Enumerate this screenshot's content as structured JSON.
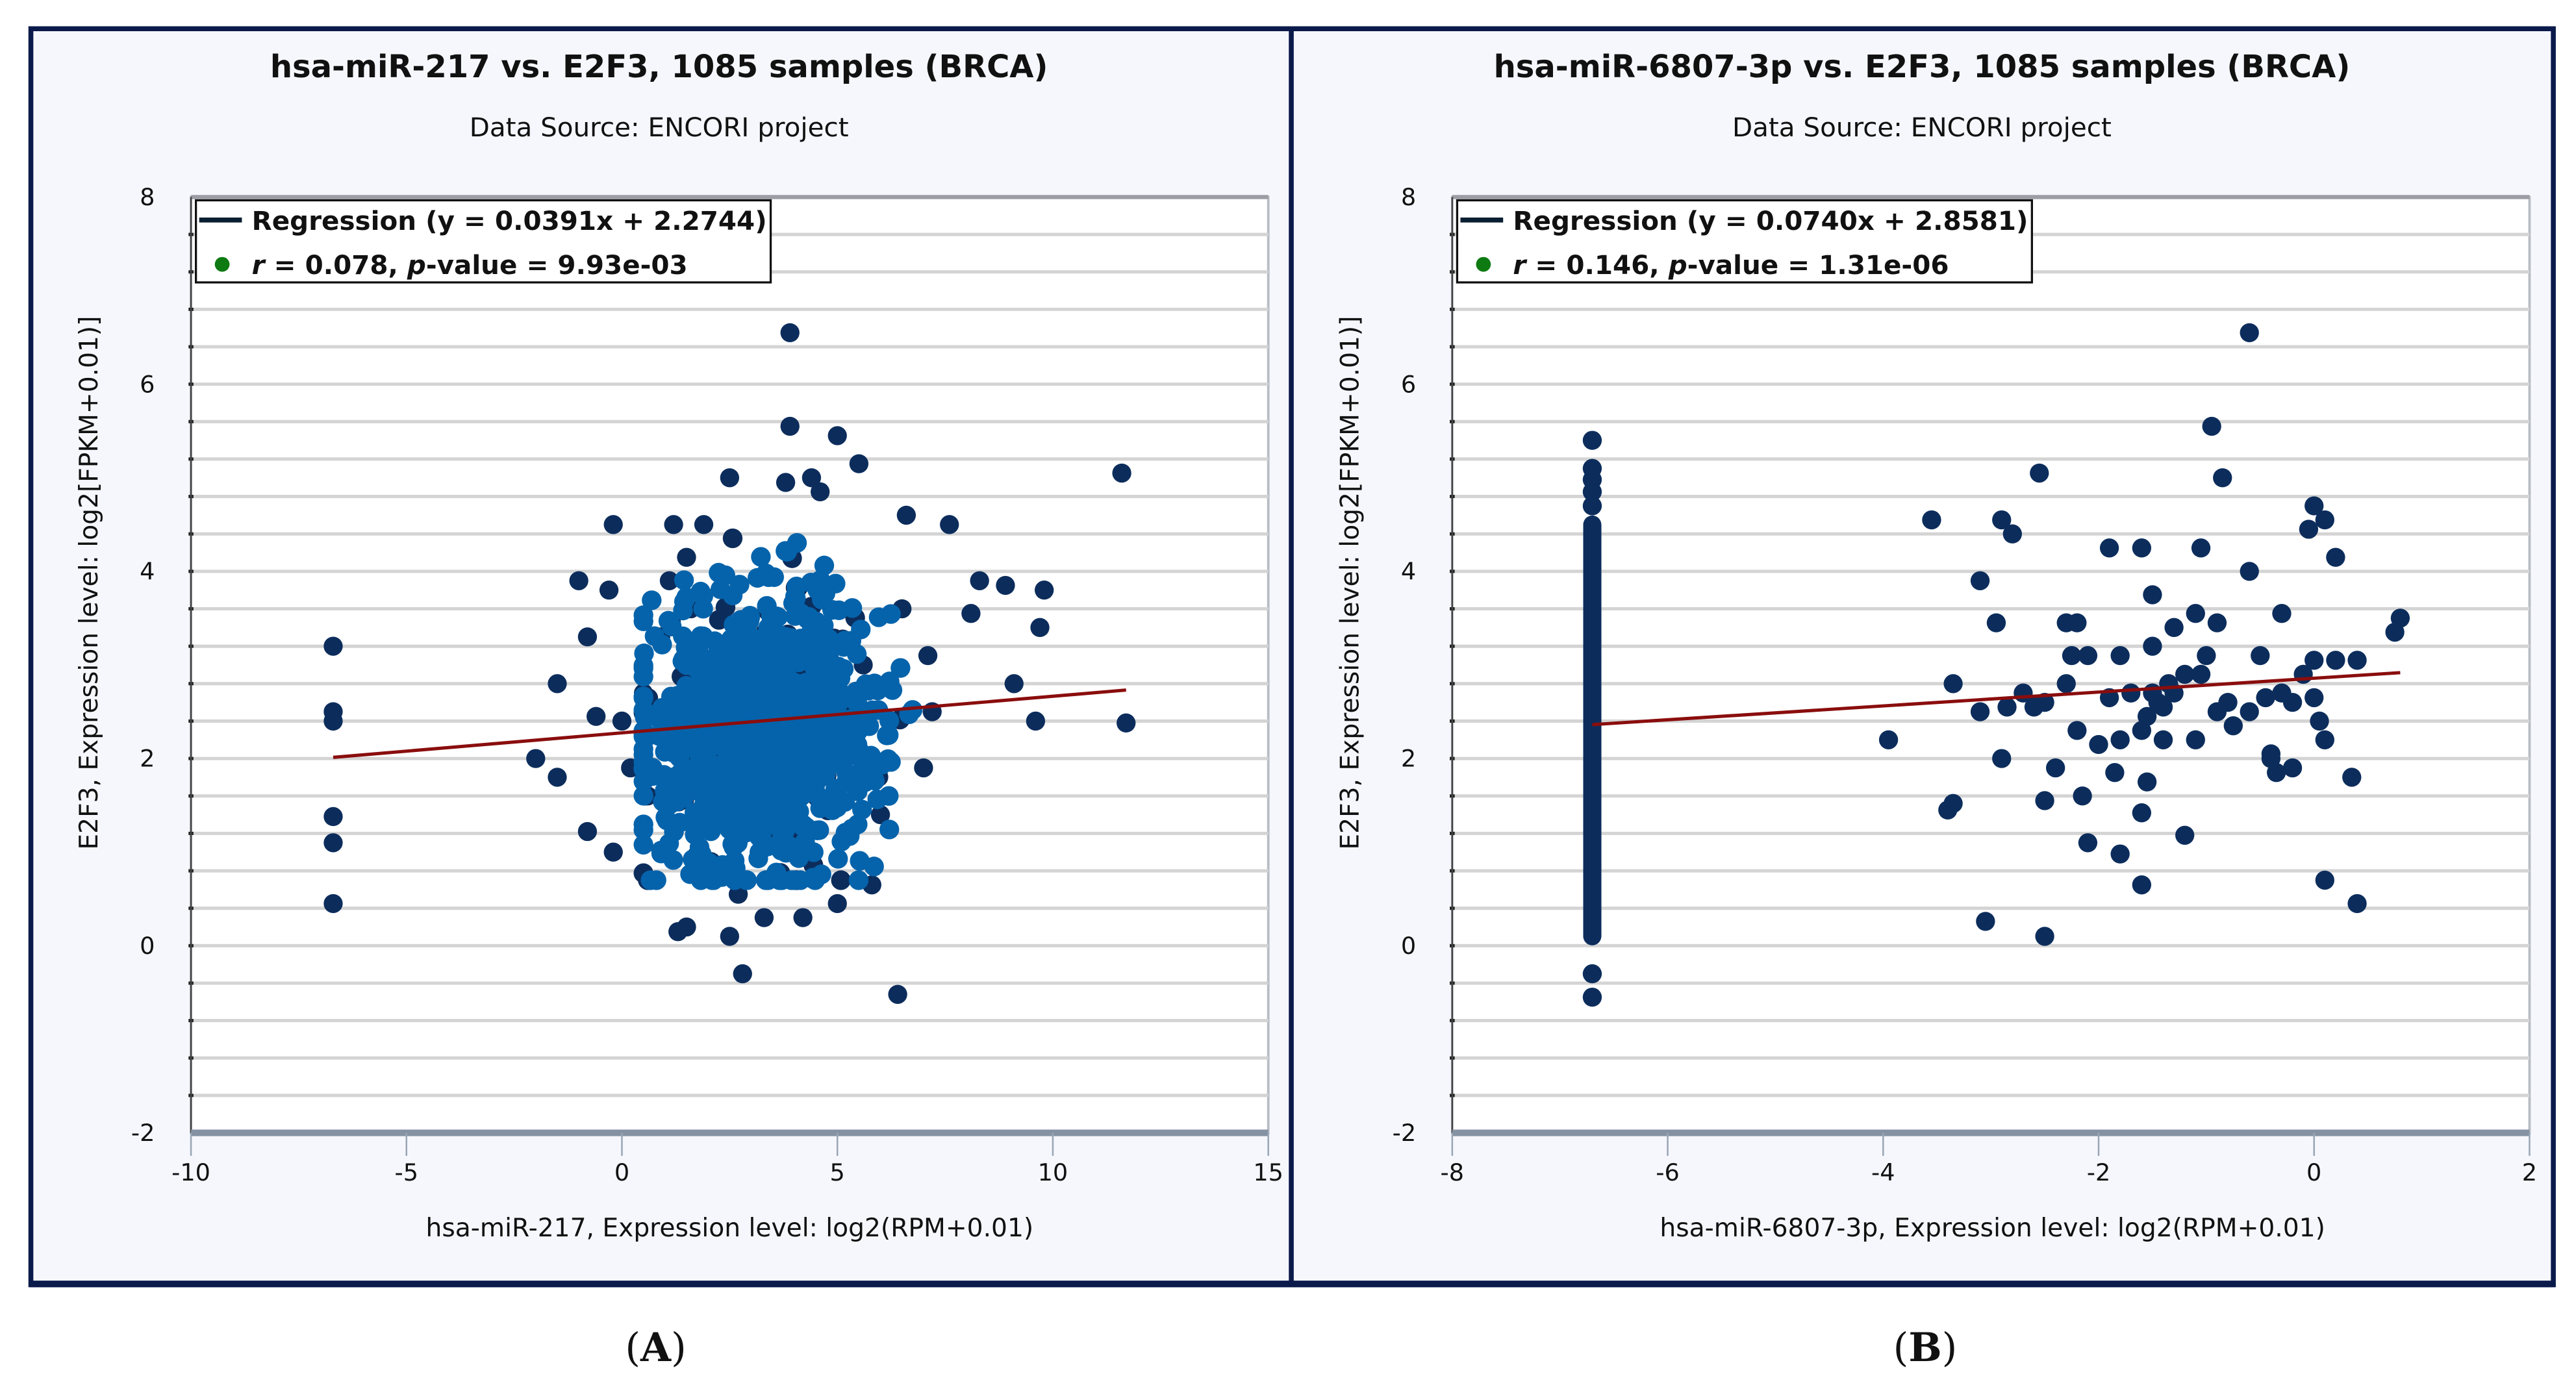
{
  "panel_labels": [
    {
      "open": "(",
      "letter": "A",
      "close": ")"
    },
    {
      "open": "(",
      "letter": "B",
      "close": ")"
    }
  ],
  "colors": {
    "frame": "#0a1a4a",
    "panel_bg": "#f6f7fd",
    "grid": "#d4d4d4",
    "point": "#0c2d5c",
    "cluster_point": "#0563ab",
    "regression": "#8a0d0d",
    "legend_line": "#0b1f33",
    "legend_dot": "#0e7a12"
  },
  "chart_data": [
    {
      "type": "scatter",
      "title": "hsa-miR-217 vs. E2F3, 1085 samples (BRCA)",
      "subtitle": "Data Source: ENCORI project",
      "xlabel": "hsa-miR-217, Expression level: log2(RPM+0.01)",
      "ylabel": "E2F3, Expression level: log2[FPKM+0.01)]",
      "xlim": [
        -10,
        15
      ],
      "ylim": [
        -2,
        8
      ],
      "xticks": [
        -10,
        -5,
        0,
        5,
        10,
        15
      ],
      "yticks": [
        -2,
        0,
        2,
        4,
        6,
        8
      ],
      "grid": true,
      "grid_step": 0.4,
      "legend_position": "top-left",
      "legend": {
        "regression": "Regression (y = 0.0391x + 2.2744)",
        "stats": "r = 0.078, p-value = 9.93e-03"
      },
      "regression": {
        "slope": 0.0391,
        "intercept": 2.2744,
        "x_range": [
          -6.7,
          11.7
        ]
      },
      "n_samples": 1085,
      "dense_cluster": {
        "center": [
          3.3,
          2.3
        ],
        "sd": [
          1.35,
          0.75
        ],
        "n": 1000
      },
      "points": [
        [
          -6.7,
          3.2
        ],
        [
          -6.7,
          2.5
        ],
        [
          -6.7,
          2.4
        ],
        [
          -6.7,
          1.38
        ],
        [
          -6.7,
          1.1
        ],
        [
          -6.7,
          0.45
        ],
        [
          3.9,
          6.55
        ],
        [
          3.9,
          5.55
        ],
        [
          5.0,
          5.45
        ],
        [
          11.6,
          5.05
        ],
        [
          2.5,
          5.0
        ],
        [
          3.8,
          4.95
        ],
        [
          5.5,
          5.15
        ],
        [
          4.4,
          5.0
        ],
        [
          4.6,
          4.85
        ],
        [
          -0.2,
          4.5
        ],
        [
          1.2,
          4.5
        ],
        [
          1.9,
          4.5
        ],
        [
          6.6,
          4.6
        ],
        [
          7.6,
          4.5
        ],
        [
          8.3,
          3.9
        ],
        [
          8.9,
          3.85
        ],
        [
          9.8,
          3.8
        ],
        [
          9.7,
          3.4
        ],
        [
          8.1,
          3.55
        ],
        [
          -1.0,
          3.9
        ],
        [
          -0.3,
          3.8
        ],
        [
          1.5,
          4.15
        ],
        [
          1.1,
          3.9
        ],
        [
          -0.8,
          3.3
        ],
        [
          9.1,
          2.8
        ],
        [
          9.6,
          2.4
        ],
        [
          11.7,
          2.38
        ],
        [
          -1.5,
          2.8
        ],
        [
          -2.0,
          2.0
        ],
        [
          -1.5,
          1.8
        ],
        [
          -0.8,
          1.22
        ],
        [
          -0.2,
          1.0
        ],
        [
          0.0,
          2.4
        ],
        [
          -0.6,
          2.45
        ],
        [
          2.5,
          0.1
        ],
        [
          1.3,
          0.15
        ],
        [
          1.5,
          0.2
        ],
        [
          2.8,
          -0.3
        ],
        [
          6.4,
          -0.52
        ],
        [
          5.0,
          0.45
        ],
        [
          5.8,
          0.65
        ],
        [
          3.3,
          0.3
        ],
        [
          4.2,
          0.3
        ],
        [
          2.7,
          0.55
        ],
        [
          7.0,
          1.9
        ],
        [
          7.2,
          2.5
        ],
        [
          7.1,
          3.1
        ],
        [
          6.5,
          3.6
        ],
        [
          6.0,
          1.4
        ],
        [
          0.6,
          1.6
        ],
        [
          0.2,
          1.9
        ],
        [
          0.5,
          2.7
        ],
        [
          0.9,
          3.3
        ],
        [
          1.6,
          3.6
        ],
        [
          5.6,
          3.0
        ]
      ]
    },
    {
      "type": "scatter",
      "title": "hsa-miR-6807-3p vs. E2F3, 1085 samples (BRCA)",
      "subtitle": "Data Source: ENCORI project",
      "xlabel": "hsa-miR-6807-3p, Expression level: log2(RPM+0.01)",
      "ylabel": "E2F3, Expression level: log2[FPKM+0.01)]",
      "xlim": [
        -8,
        2
      ],
      "ylim": [
        -2,
        8
      ],
      "xticks": [
        -8,
        -6,
        -4,
        -2,
        0,
        2
      ],
      "yticks": [
        -2,
        0,
        2,
        4,
        6,
        8
      ],
      "grid": true,
      "grid_step": 0.4,
      "legend_position": "top-left",
      "legend": {
        "regression": "Regression (y = 0.0740x + 2.8581)",
        "stats": "r = 0.146, p-value = 1.31e-06"
      },
      "regression": {
        "slope": 0.074,
        "intercept": 2.8581,
        "x_range": [
          -6.7,
          0.8
        ]
      },
      "n_samples": 1085,
      "vertical_column": {
        "x": -6.7,
        "y_range": [
          0.1,
          4.5
        ],
        "n": 900
      },
      "points": [
        [
          -6.7,
          5.4
        ],
        [
          -6.7,
          5.1
        ],
        [
          -6.7,
          4.98
        ],
        [
          -6.7,
          4.85
        ],
        [
          -6.7,
          4.7
        ],
        [
          -6.7,
          -0.3
        ],
        [
          -6.7,
          -0.55
        ],
        [
          -3.55,
          4.55
        ],
        [
          -2.55,
          5.05
        ],
        [
          -0.95,
          5.55
        ],
        [
          -0.6,
          6.55
        ],
        [
          -0.85,
          5.0
        ],
        [
          -2.9,
          4.55
        ],
        [
          -2.8,
          4.4
        ],
        [
          -3.1,
          3.9
        ],
        [
          -1.9,
          4.25
        ],
        [
          -1.6,
          4.25
        ],
        [
          -1.05,
          4.25
        ],
        [
          0.0,
          4.7
        ],
        [
          0.1,
          4.55
        ],
        [
          0.2,
          4.15
        ],
        [
          -0.05,
          4.45
        ],
        [
          -2.95,
          3.45
        ],
        [
          -2.3,
          3.45
        ],
        [
          -2.2,
          3.45
        ],
        [
          -1.5,
          3.75
        ],
        [
          -0.6,
          4.0
        ],
        [
          -0.3,
          3.55
        ],
        [
          -1.1,
          3.55
        ],
        [
          -0.9,
          3.45
        ],
        [
          0.75,
          3.35
        ],
        [
          0.8,
          3.5
        ],
        [
          -3.35,
          2.8
        ],
        [
          -3.1,
          2.5
        ],
        [
          -2.85,
          2.55
        ],
        [
          -2.7,
          2.7
        ],
        [
          -2.5,
          2.6
        ],
        [
          -2.3,
          2.8
        ],
        [
          -2.1,
          3.1
        ],
        [
          -1.8,
          3.1
        ],
        [
          -1.5,
          3.2
        ],
        [
          -1.3,
          3.4
        ],
        [
          -1.0,
          3.1
        ],
        [
          -0.5,
          3.1
        ],
        [
          0.0,
          3.05
        ],
        [
          0.2,
          3.05
        ],
        [
          0.4,
          3.05
        ],
        [
          -1.7,
          2.7
        ],
        [
          -1.5,
          2.7
        ],
        [
          -1.3,
          2.7
        ],
        [
          -1.2,
          2.9
        ],
        [
          -0.8,
          2.6
        ],
        [
          -0.6,
          2.5
        ],
        [
          -0.3,
          2.7
        ],
        [
          0.0,
          2.65
        ],
        [
          -0.1,
          2.9
        ],
        [
          -2.2,
          2.3
        ],
        [
          -2.0,
          2.15
        ],
        [
          -1.8,
          2.2
        ],
        [
          -1.6,
          2.3
        ],
        [
          -1.4,
          2.2
        ],
        [
          -1.1,
          2.2
        ],
        [
          -0.9,
          2.5
        ],
        [
          -0.4,
          2.0
        ],
        [
          -0.2,
          1.9
        ],
        [
          0.1,
          2.2
        ],
        [
          -2.4,
          1.9
        ],
        [
          -2.5,
          1.55
        ],
        [
          -2.15,
          1.6
        ],
        [
          -1.85,
          1.85
        ],
        [
          -1.55,
          1.75
        ],
        [
          -1.6,
          1.42
        ],
        [
          -2.1,
          1.1
        ],
        [
          -1.8,
          0.98
        ],
        [
          -1.6,
          0.65
        ],
        [
          -1.2,
          1.18
        ],
        [
          -3.4,
          1.45
        ],
        [
          -3.35,
          1.52
        ],
        [
          -2.9,
          2.0
        ],
        [
          -3.95,
          2.2
        ],
        [
          -3.05,
          0.26
        ],
        [
          -2.5,
          0.1
        ],
        [
          0.35,
          1.8
        ],
        [
          0.1,
          0.7
        ],
        [
          0.4,
          0.45
        ],
        [
          -0.35,
          1.85
        ],
        [
          -0.4,
          2.05
        ],
        [
          -2.6,
          2.55
        ],
        [
          -1.9,
          2.65
        ],
        [
          -1.4,
          2.55
        ],
        [
          -0.75,
          2.35
        ],
        [
          0.05,
          2.4
        ],
        [
          -2.25,
          3.1
        ],
        [
          -1.05,
          2.9
        ],
        [
          -1.45,
          2.6
        ],
        [
          -1.35,
          2.8
        ],
        [
          -1.55,
          2.45
        ],
        [
          -0.2,
          2.6
        ],
        [
          -0.45,
          2.65
        ]
      ]
    }
  ]
}
